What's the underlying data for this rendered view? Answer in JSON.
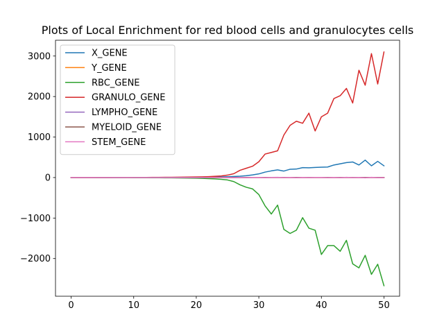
{
  "chart_data": {
    "type": "line",
    "title": "Plots of Local Enrichment for red blood cells and granulocytes cells",
    "xlabel": "",
    "ylabel": "",
    "xlim": [
      -2.5,
      52.5
    ],
    "ylim": [
      -2930,
      3390
    ],
    "xticks": [
      0,
      10,
      20,
      30,
      40,
      50
    ],
    "xtick_labels": [
      "0",
      "10",
      "20",
      "30",
      "40",
      "50"
    ],
    "yticks": [
      -2000,
      -1000,
      0,
      1000,
      2000,
      3000
    ],
    "ytick_labels": [
      "−2000",
      "−1000",
      "0",
      "1000",
      "2000",
      "3000"
    ],
    "legend_position": "top-left",
    "x": [
      0,
      1,
      2,
      3,
      4,
      5,
      6,
      7,
      8,
      9,
      10,
      11,
      12,
      13,
      14,
      15,
      16,
      17,
      18,
      19,
      20,
      21,
      22,
      23,
      24,
      25,
      26,
      27,
      28,
      29,
      30,
      31,
      32,
      33,
      34,
      35,
      36,
      37,
      38,
      39,
      40,
      41,
      42,
      43,
      44,
      45,
      46,
      47,
      48,
      49,
      50
    ],
    "series": [
      {
        "name": "X_GENE",
        "color": "#1f77b4",
        "values": [
          0,
          0,
          0,
          1,
          1,
          1,
          1,
          1,
          1,
          2,
          2,
          2,
          2,
          2,
          3,
          3,
          3,
          4,
          4,
          5,
          6,
          7,
          9,
          12,
          15,
          20,
          26,
          33,
          45,
          65,
          90,
          135,
          165,
          190,
          160,
          205,
          210,
          245,
          240,
          250,
          255,
          260,
          310,
          340,
          370,
          385,
          310,
          430,
          290,
          400,
          290
        ]
      },
      {
        "name": "Y_GENE",
        "color": "#ff7f0e",
        "values": [
          0,
          0,
          0,
          0,
          0,
          0,
          0,
          0,
          0,
          0,
          0,
          0,
          0,
          0,
          0,
          0,
          0,
          0,
          0,
          0,
          0,
          0,
          0,
          0,
          0,
          0,
          0,
          0,
          0,
          0,
          0,
          0,
          0,
          0,
          0,
          0,
          0,
          0,
          0,
          0,
          0,
          0,
          0,
          0,
          0,
          0,
          0,
          0,
          0,
          0,
          0
        ]
      },
      {
        "name": "RBC_GENE",
        "color": "#2ca02c",
        "values": [
          0,
          0,
          0,
          0,
          -1,
          -1,
          -1,
          -1,
          -2,
          -2,
          -3,
          -3,
          -4,
          -5,
          -6,
          -7,
          -8,
          -10,
          -12,
          -14,
          -17,
          -21,
          -26,
          -33,
          -45,
          -60,
          -100,
          -180,
          -240,
          -280,
          -420,
          -700,
          -900,
          -680,
          -1280,
          -1380,
          -1300,
          -990,
          -1250,
          -1300,
          -1900,
          -1680,
          -1680,
          -1820,
          -1550,
          -2130,
          -2230,
          -1920,
          -2390,
          -2140,
          -2670
        ]
      },
      {
        "name": "GRANULO_GENE",
        "color": "#d62728",
        "values": [
          0,
          0,
          0,
          1,
          1,
          1,
          1,
          2,
          2,
          2,
          3,
          3,
          4,
          5,
          6,
          7,
          8,
          9,
          11,
          13,
          15,
          18,
          23,
          30,
          40,
          60,
          95,
          180,
          230,
          280,
          390,
          580,
          620,
          660,
          1050,
          1290,
          1390,
          1340,
          1590,
          1150,
          1500,
          1590,
          1950,
          2020,
          2200,
          1840,
          2650,
          2280,
          3060,
          2310,
          3100
        ]
      },
      {
        "name": "LYMPHO_GENE",
        "color": "#9467bd",
        "values": [
          0,
          0,
          0,
          0,
          0,
          0,
          0,
          0,
          0,
          0,
          0,
          0,
          0,
          0,
          0,
          0,
          0,
          0,
          0,
          0,
          0,
          0,
          0,
          0,
          0,
          0,
          0,
          0,
          0,
          0,
          0,
          0,
          0,
          0,
          0,
          0,
          0,
          0,
          0,
          0,
          0,
          0,
          0,
          0,
          0,
          0,
          0,
          0,
          0,
          0,
          0
        ]
      },
      {
        "name": "MYELOID_GENE",
        "color": "#8c564b",
        "values": [
          0,
          0,
          0,
          0,
          0,
          0,
          0,
          0,
          0,
          0,
          0,
          0,
          0,
          0,
          0,
          0,
          0,
          0,
          0,
          0,
          0,
          0,
          0,
          0,
          0,
          0,
          0,
          0,
          0,
          0,
          0,
          0,
          0,
          0,
          0,
          0,
          0,
          0,
          0,
          0,
          0,
          0,
          0,
          0,
          0,
          0,
          0,
          0,
          0,
          0,
          0
        ]
      },
      {
        "name": "STEM_GENE",
        "color": "#e377c2",
        "values": [
          0,
          0,
          0,
          0,
          0,
          0,
          0,
          0,
          0,
          0,
          0,
          0,
          0,
          0,
          0,
          0,
          0,
          0,
          0,
          0,
          0,
          0,
          0,
          0,
          0,
          0,
          -2,
          3,
          -3,
          2,
          4,
          -3,
          2,
          5,
          -2,
          4,
          -6,
          3,
          -2,
          4,
          2,
          -3,
          3,
          -4,
          6,
          -2,
          3,
          -8,
          6,
          -4,
          -4
        ]
      }
    ]
  }
}
